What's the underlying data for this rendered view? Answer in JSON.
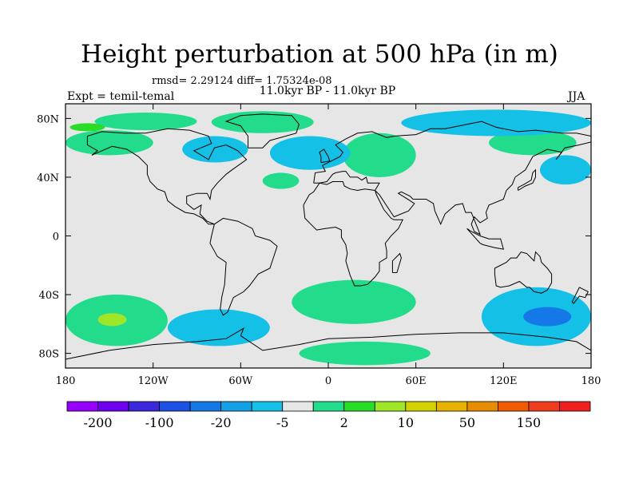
{
  "title": "Height perturbation at 500 hPa (in m)",
  "stats": "rmsd= 2.29124 diff= 1.75324e-08",
  "period": "11.0kyr BP - 11.0kyr BP",
  "experiment": "Expt = temil-temal",
  "season": "JJA",
  "map": {
    "projection": "cylindrical equidistant",
    "lon_range": [
      -180,
      180
    ],
    "lat_range": [
      -90,
      90
    ],
    "lat_ticks": [
      {
        "value": 80,
        "label": "80N"
      },
      {
        "value": 40,
        "label": "40N"
      },
      {
        "value": 0,
        "label": "0"
      },
      {
        "value": -40,
        "label": "40S"
      },
      {
        "value": -80,
        "label": "80S"
      }
    ],
    "lon_ticks": [
      {
        "value": -180,
        "label": "180"
      },
      {
        "value": -120,
        "label": "120W"
      },
      {
        "value": -60,
        "label": "60W"
      },
      {
        "value": 0,
        "label": "0"
      },
      {
        "value": 60,
        "label": "60E"
      },
      {
        "value": 120,
        "label": "120E"
      },
      {
        "value": 180,
        "label": "180"
      }
    ],
    "background_color": "#e6e6e6",
    "regions": [
      {
        "name": "arctic-canada-positive",
        "color": "#22dc8c",
        "lon": [
          -160,
          -90
        ],
        "lat": [
          72,
          84
        ]
      },
      {
        "name": "bering-positive",
        "color": "#22dc8c",
        "lon": [
          -180,
          -120
        ],
        "lat": [
          55,
          72
        ]
      },
      {
        "name": "greenland-positive",
        "color": "#22dc8c",
        "lon": [
          -80,
          -10
        ],
        "lat": [
          70,
          85
        ]
      },
      {
        "name": "north-atlantic-positive",
        "color": "#22dc8c",
        "lon": [
          -45,
          -20
        ],
        "lat": [
          32,
          43
        ]
      },
      {
        "name": "europe-positive",
        "color": "#22dc8c",
        "lon": [
          10,
          60
        ],
        "lat": [
          40,
          70
        ]
      },
      {
        "name": "north-pacific-positive",
        "color": "#22dc8c",
        "lon": [
          110,
          170
        ],
        "lat": [
          55,
          72
        ]
      },
      {
        "name": "labrador-negative",
        "color": "#14c0e6",
        "lon": [
          -100,
          -55
        ],
        "lat": [
          50,
          68
        ]
      },
      {
        "name": "scandinavia-negative",
        "color": "#14c0e6",
        "lon": [
          -40,
          15
        ],
        "lat": [
          45,
          68
        ]
      },
      {
        "name": "siberia-negative",
        "color": "#14c0e6",
        "lon": [
          50,
          180
        ],
        "lat": [
          68,
          86
        ]
      },
      {
        "name": "east-asia-negative",
        "color": "#14c0e6",
        "lon": [
          145,
          180
        ],
        "lat": [
          35,
          55
        ]
      },
      {
        "name": "southern-ocean-negative",
        "color": "#14c0e6",
        "lon": [
          -110,
          -40
        ],
        "lat": [
          -75,
          -50
        ]
      },
      {
        "name": "australia-negative",
        "color": "#14c0e6",
        "lon": [
          105,
          180
        ],
        "lat": [
          -75,
          -35
        ]
      },
      {
        "name": "south-pacific-positive",
        "color": "#22dc8c",
        "lon": [
          -180,
          -110
        ],
        "lat": [
          -75,
          -40
        ]
      },
      {
        "name": "south-atlantic-positive",
        "color": "#22dc8c",
        "lon": [
          -25,
          60
        ],
        "lat": [
          -60,
          -30
        ]
      },
      {
        "name": "antarctica-positive",
        "color": "#22dc8c",
        "lon": [
          -20,
          70
        ],
        "lat": [
          -88,
          -72
        ]
      }
    ]
  },
  "colorbar": {
    "colors": [
      "#9600ff",
      "#6e00f0",
      "#3c28dc",
      "#1e50e6",
      "#1478e6",
      "#14a0e6",
      "#14c0e6",
      "#e6e6e6",
      "#22dc8c",
      "#28dc28",
      "#a0e628",
      "#d2d200",
      "#e6b400",
      "#e68c00",
      "#f05a00",
      "#f03c1e",
      "#f01e1e"
    ],
    "labels": [
      {
        "after_box": 1,
        "text": "-200"
      },
      {
        "after_box": 3,
        "text": "-100"
      },
      {
        "after_box": 5,
        "text": "-20"
      },
      {
        "after_box": 7,
        "text": "-5"
      },
      {
        "after_box": 9,
        "text": "2"
      },
      {
        "after_box": 11,
        "text": "10"
      },
      {
        "after_box": 13,
        "text": "50"
      },
      {
        "after_box": 15,
        "text": "150"
      }
    ]
  }
}
